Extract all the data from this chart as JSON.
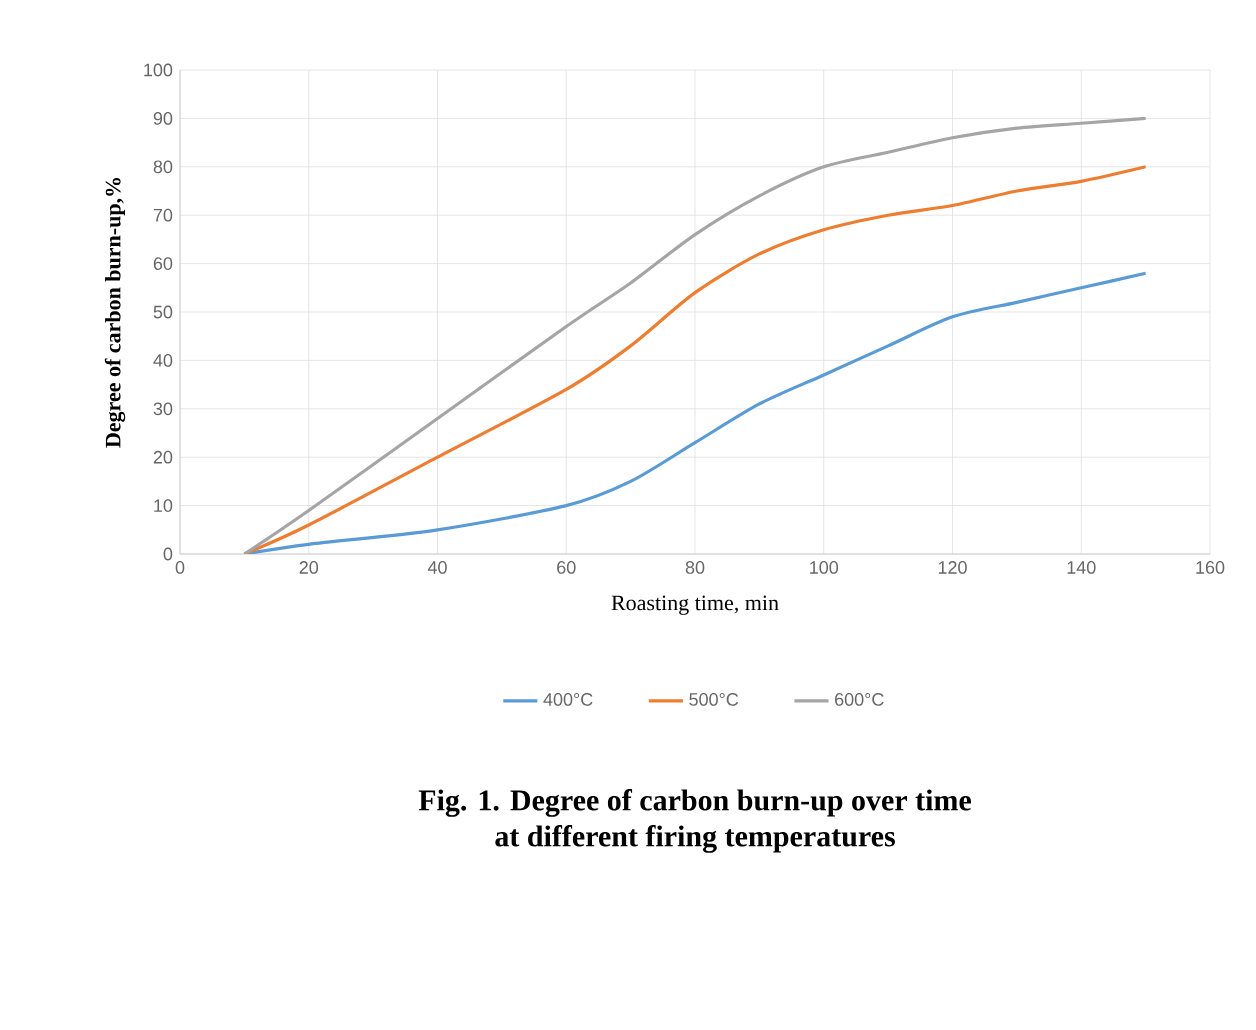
{
  "chart_data": {
    "type": "line",
    "title": "Fig. 1. Degree of carbon burn-up over time\nat different firing temperatures",
    "xlabel": "Roasting time, min",
    "ylabel": "Degree of carbon burn-up,%",
    "x": [
      10,
      20,
      40,
      60,
      70,
      80,
      90,
      100,
      110,
      120,
      130,
      140,
      150
    ],
    "series": [
      {
        "name": "400°C",
        "color": "#5b9bd5",
        "values": [
          0,
          2,
          5,
          10,
          15,
          23,
          31,
          37,
          43,
          49,
          52,
          55,
          58
        ]
      },
      {
        "name": "500°C",
        "color": "#ed7d31",
        "values": [
          0,
          6,
          20,
          34,
          43,
          54,
          62,
          67,
          70,
          72,
          75,
          77,
          80
        ]
      },
      {
        "name": "600°C",
        "color": "#a5a5a5",
        "values": [
          0,
          9,
          28,
          47,
          56,
          66,
          74,
          80,
          83,
          86,
          88,
          89,
          90
        ]
      }
    ],
    "xlim": [
      0,
      160
    ],
    "xticks": [
      0,
      20,
      40,
      60,
      80,
      100,
      120,
      140,
      160
    ],
    "ylim": [
      0,
      100
    ],
    "yticks": [
      0,
      10,
      20,
      30,
      40,
      50,
      60,
      70,
      80,
      90,
      100
    ],
    "grid": true,
    "legend": "bottom",
    "marker": "none",
    "line_style": "solid"
  }
}
